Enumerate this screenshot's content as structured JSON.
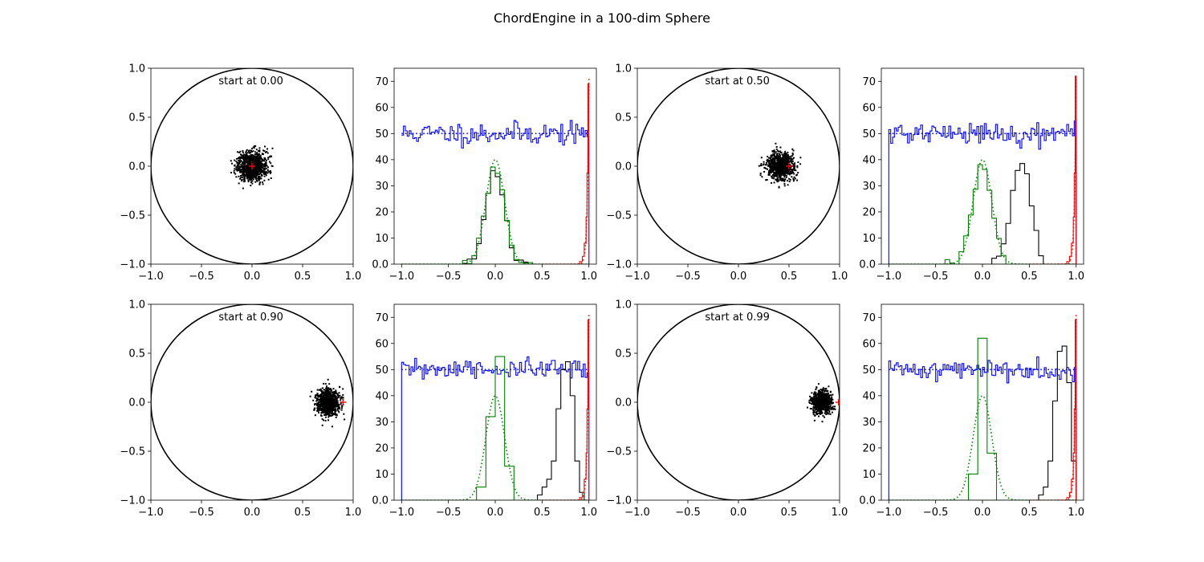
{
  "figure": {
    "suptitle": "ChordEngine in a 100-dim Sphere"
  },
  "chart_data": [
    {
      "type": "scatter",
      "annotation": "start at 0.00",
      "start": 0.0,
      "xlim": [
        -1.0,
        1.0
      ],
      "ylim": [
        -1.0,
        1.0
      ],
      "xticks": [
        -1.0,
        -0.5,
        0.0,
        0.5,
        1.0
      ],
      "yticks": [
        -1.0,
        -0.5,
        0.0,
        0.5,
        1.0
      ],
      "circle_radius": 1.0,
      "cloud": {
        "cx": 0.0,
        "cy": 0.0,
        "sd_x": 0.075,
        "sd_y": 0.075,
        "n": 900,
        "color": "#000000"
      },
      "marker": {
        "x": 0.0,
        "y": 0.0,
        "color": "#ff0000"
      }
    },
    {
      "type": "histogram",
      "xlim": [
        -1.08,
        1.08
      ],
      "ylim": [
        0,
        75
      ],
      "xticks": [
        -1.0,
        -0.5,
        0.0,
        0.5,
        1.0
      ],
      "yticks": [
        0,
        10,
        20,
        30,
        40,
        50,
        60,
        70
      ],
      "series": [
        {
          "color": "#0000ff",
          "style": "step",
          "kind": "uniform",
          "start": -1.0,
          "end": 1.0,
          "level": 50,
          "noise": 2.2,
          "seed": 11,
          "edge_drop": false
        },
        {
          "color": "#0000ff",
          "style": "dotted",
          "kind": "uniform",
          "start": -1.0,
          "end": 1.0,
          "level": 50
        },
        {
          "color": "#000000",
          "style": "step",
          "kind": "gauss",
          "center": 0.0,
          "sigma": 0.1,
          "peak": 36,
          "start": -0.4,
          "end": 0.4,
          "binw": 0.05,
          "seed": 3
        },
        {
          "color": "#008000",
          "style": "step",
          "kind": "gauss",
          "center": 0.0,
          "sigma": 0.1,
          "peak": 37,
          "start": -0.4,
          "end": 0.4,
          "binw": 0.05,
          "seed": 5
        },
        {
          "color": "#008000",
          "style": "dotted",
          "kind": "gauss_curve",
          "center": 0.0,
          "sigma": 0.1,
          "peak": 40
        },
        {
          "color": "#ff0000",
          "style": "step",
          "kind": "edge",
          "peak": 69
        },
        {
          "color": "#ff0000",
          "style": "dotted",
          "kind": "edge_curve",
          "peak": 71
        }
      ]
    },
    {
      "type": "scatter",
      "annotation": "start at 0.50",
      "start": 0.5,
      "xlim": [
        -1.0,
        1.0
      ],
      "ylim": [
        -1.0,
        1.0
      ],
      "xticks": [
        -1.0,
        -0.5,
        0.0,
        0.5,
        1.0
      ],
      "yticks": [
        -1.0,
        -0.5,
        0.0,
        0.5,
        1.0
      ],
      "circle_radius": 1.0,
      "cloud": {
        "cx": 0.42,
        "cy": 0.0,
        "sd_x": 0.07,
        "sd_y": 0.07,
        "n": 900,
        "color": "#000000"
      },
      "marker": {
        "x": 0.5,
        "y": 0.0,
        "color": "#ff0000"
      }
    },
    {
      "type": "histogram",
      "xlim": [
        -1.08,
        1.08
      ],
      "ylim": [
        0,
        75
      ],
      "xticks": [
        -1.0,
        -0.5,
        0.0,
        0.5,
        1.0
      ],
      "yticks": [
        0,
        10,
        20,
        30,
        40,
        50,
        60,
        70
      ],
      "series": [
        {
          "color": "#0000ff",
          "style": "step",
          "kind": "uniform",
          "start": -1.0,
          "end": 1.0,
          "level": 50,
          "noise": 2.2,
          "seed": 21,
          "edge_drop": true
        },
        {
          "color": "#0000ff",
          "style": "dotted",
          "kind": "uniform",
          "start": -1.0,
          "end": 1.0,
          "level": 50
        },
        {
          "color": "#000000",
          "style": "step",
          "kind": "gauss",
          "center": 0.42,
          "sigma": 0.1,
          "peak": 40,
          "start": 0.1,
          "end": 0.65,
          "binw": 0.05,
          "seed": 7
        },
        {
          "color": "#008000",
          "style": "step",
          "kind": "gauss",
          "center": 0.0,
          "sigma": 0.1,
          "peak": 40,
          "start": -0.4,
          "end": 0.4,
          "binw": 0.05,
          "seed": 9
        },
        {
          "color": "#008000",
          "style": "dotted",
          "kind": "gauss_curve",
          "center": 0.0,
          "sigma": 0.1,
          "peak": 40
        },
        {
          "color": "#ff0000",
          "style": "step",
          "kind": "edge",
          "peak": 72
        },
        {
          "color": "#ff0000",
          "style": "dotted",
          "kind": "edge_curve",
          "peak": 71
        }
      ]
    },
    {
      "type": "scatter",
      "annotation": "start at 0.90",
      "start": 0.9,
      "xlim": [
        -1.0,
        1.0
      ],
      "ylim": [
        -1.0,
        1.0
      ],
      "xticks": [
        -1.0,
        -0.5,
        0.0,
        0.5,
        1.0
      ],
      "yticks": [
        -1.0,
        -0.5,
        0.0,
        0.5,
        1.0
      ],
      "circle_radius": 1.0,
      "cloud": {
        "cx": 0.75,
        "cy": 0.0,
        "sd_x": 0.055,
        "sd_y": 0.065,
        "n": 900,
        "color": "#000000"
      },
      "marker": {
        "x": 0.9,
        "y": 0.0,
        "color": "#ff0000"
      }
    },
    {
      "type": "histogram",
      "xlim": [
        -1.08,
        1.08
      ],
      "ylim": [
        0,
        75
      ],
      "xticks": [
        -1.0,
        -0.5,
        0.0,
        0.5,
        1.0
      ],
      "yticks": [
        0,
        10,
        20,
        30,
        40,
        50,
        60,
        70
      ],
      "series": [
        {
          "color": "#0000ff",
          "style": "step",
          "kind": "uniform",
          "start": -1.0,
          "end": 1.0,
          "level": 50,
          "noise": 2.0,
          "seed": 31,
          "edge_drop": true
        },
        {
          "color": "#0000ff",
          "style": "dotted",
          "kind": "uniform",
          "start": -1.0,
          "end": 1.0,
          "level": 50
        },
        {
          "color": "#000000",
          "style": "bars",
          "edges": [
            0.45,
            0.5,
            0.55,
            0.6,
            0.65,
            0.7,
            0.75,
            0.8,
            0.85,
            0.9,
            0.95
          ],
          "values": [
            2,
            5,
            8,
            15,
            35,
            50,
            53,
            40,
            15,
            3
          ]
        },
        {
          "color": "#008000",
          "style": "bars",
          "edges": [
            -0.2,
            -0.1,
            0.0,
            0.1,
            0.2
          ],
          "values": [
            5,
            32,
            55,
            13
          ]
        },
        {
          "color": "#008000",
          "style": "dotted",
          "kind": "gauss_curve",
          "center": 0.0,
          "sigma": 0.1,
          "peak": 40
        },
        {
          "color": "#ff0000",
          "style": "step",
          "kind": "edge",
          "peak": 69
        },
        {
          "color": "#ff0000",
          "style": "dotted",
          "kind": "edge_curve",
          "peak": 71
        }
      ]
    },
    {
      "type": "scatter",
      "annotation": "start at 0.99",
      "start": 0.99,
      "xlim": [
        -1.0,
        1.0
      ],
      "ylim": [
        -1.0,
        1.0
      ],
      "xticks": [
        -1.0,
        -0.5,
        0.0,
        0.5,
        1.0
      ],
      "yticks": [
        -1.0,
        -0.5,
        0.0,
        0.5,
        1.0
      ],
      "circle_radius": 1.0,
      "cloud": {
        "cx": 0.82,
        "cy": 0.0,
        "sd_x": 0.045,
        "sd_y": 0.055,
        "n": 850,
        "color": "#000000"
      },
      "marker": {
        "x": 0.99,
        "y": 0.0,
        "color": "#ff0000"
      }
    },
    {
      "type": "histogram",
      "xlim": [
        -1.08,
        1.08
      ],
      "ylim": [
        0,
        75
      ],
      "xticks": [
        -1.0,
        -0.5,
        0.0,
        0.5,
        1.0
      ],
      "yticks": [
        0,
        10,
        20,
        30,
        40,
        50,
        60,
        70
      ],
      "series": [
        {
          "color": "#0000ff",
          "style": "step",
          "kind": "uniform",
          "start": -1.0,
          "end": 1.0,
          "level": 50,
          "noise": 2.0,
          "seed": 41,
          "edge_drop": true
        },
        {
          "color": "#0000ff",
          "style": "dotted",
          "kind": "uniform",
          "start": -1.0,
          "end": 1.0,
          "level": 50
        },
        {
          "color": "#000000",
          "style": "bars",
          "edges": [
            0.6,
            0.65,
            0.7,
            0.75,
            0.8,
            0.85,
            0.9,
            0.95,
            1.0
          ],
          "values": [
            2,
            5,
            15,
            38,
            57,
            59,
            45,
            15
          ]
        },
        {
          "color": "#008000",
          "style": "bars",
          "edges": [
            -0.15,
            -0.05,
            0.05,
            0.15
          ],
          "values": [
            10,
            62,
            18
          ]
        },
        {
          "color": "#008000",
          "style": "dotted",
          "kind": "gauss_curve",
          "center": 0.0,
          "sigma": 0.1,
          "peak": 40
        },
        {
          "color": "#ff0000",
          "style": "step",
          "kind": "edge",
          "peak": 69
        },
        {
          "color": "#ff0000",
          "style": "dotted",
          "kind": "edge_curve",
          "peak": 71
        }
      ]
    }
  ]
}
